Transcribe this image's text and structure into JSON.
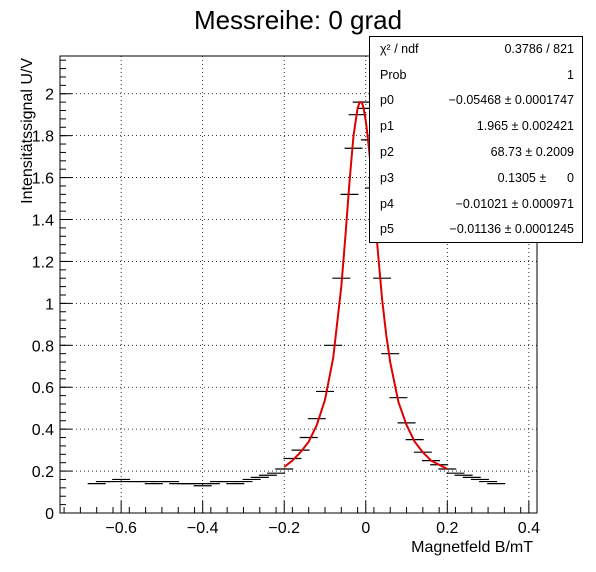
{
  "chart_data": {
    "type": "scatter",
    "title": "Messreihe: 0 grad",
    "xlabel": "Magnetfeld B/mT",
    "ylabel": "Intensitätssignal U/V",
    "xlim": [
      -0.75,
      0.42
    ],
    "ylim": [
      0,
      2.18
    ],
    "x_ticks": [
      -0.6,
      -0.4,
      -0.2,
      0,
      0.2,
      0.4
    ],
    "x_tick_labels": [
      "−0.6",
      "−0.4",
      "−0.2",
      "0",
      "0.2",
      "0.4"
    ],
    "y_ticks": [
      0,
      0.2,
      0.4,
      0.6,
      0.8,
      1,
      1.2,
      1.4,
      1.6,
      1.8,
      2
    ],
    "y_tick_labels": [
      "0",
      "0.2",
      "0.4",
      "0.6",
      "0.8",
      "1",
      "1.2",
      "1.4",
      "1.6",
      "1.8",
      "2"
    ],
    "grid": true,
    "fit_color": "#dd0000",
    "data_color": "#000000",
    "fit_range": [
      -0.2,
      0.2
    ],
    "fit_function": "p0 + p1*p2^2/(p2^2*(x-p4)^2+1)... (Lorentz-type peak)",
    "series": [
      {
        "kind": "data",
        "x": [
          -0.66,
          -0.64,
          -0.62,
          -0.6,
          -0.58,
          -0.56,
          -0.54,
          -0.52,
          -0.5,
          -0.48,
          -0.46,
          -0.44,
          -0.42,
          -0.4,
          -0.38,
          -0.36,
          -0.34,
          -0.32,
          -0.3,
          -0.28,
          -0.26,
          -0.24,
          -0.22,
          -0.2,
          -0.18,
          -0.16,
          -0.14,
          -0.12,
          -0.1,
          -0.08,
          -0.06,
          -0.04,
          -0.03,
          -0.02,
          -0.01,
          0.0,
          0.01,
          0.02,
          0.04,
          0.06,
          0.08,
          0.1,
          0.12,
          0.14,
          0.16,
          0.18,
          0.2,
          0.22,
          0.24,
          0.26,
          0.28,
          0.3,
          0.32
        ],
        "y": [
          0.14,
          0.15,
          0.15,
          0.16,
          0.15,
          0.15,
          0.15,
          0.14,
          0.15,
          0.15,
          0.14,
          0.14,
          0.14,
          0.13,
          0.14,
          0.15,
          0.15,
          0.14,
          0.15,
          0.16,
          0.17,
          0.18,
          0.19,
          0.21,
          0.26,
          0.3,
          0.36,
          0.45,
          0.58,
          0.8,
          1.12,
          1.52,
          1.74,
          1.9,
          1.96,
          1.93,
          1.78,
          1.55,
          1.12,
          0.76,
          0.55,
          0.43,
          0.35,
          0.29,
          0.25,
          0.23,
          0.21,
          0.19,
          0.18,
          0.17,
          0.16,
          0.15,
          0.14
        ]
      },
      {
        "kind": "fit",
        "x": [
          -0.2,
          -0.18,
          -0.16,
          -0.14,
          -0.12,
          -0.1,
          -0.08,
          -0.06,
          -0.05,
          -0.04,
          -0.03,
          -0.02,
          -0.015,
          -0.01,
          -0.005,
          0.0,
          0.005,
          0.01,
          0.02,
          0.03,
          0.04,
          0.05,
          0.06,
          0.08,
          0.1,
          0.12,
          0.14,
          0.16,
          0.18,
          0.2
        ],
        "y": [
          0.22,
          0.25,
          0.29,
          0.34,
          0.42,
          0.54,
          0.74,
          1.08,
          1.32,
          1.58,
          1.8,
          1.93,
          1.96,
          1.96,
          1.93,
          1.87,
          1.79,
          1.7,
          1.48,
          1.24,
          1.02,
          0.85,
          0.72,
          0.53,
          0.42,
          0.34,
          0.29,
          0.25,
          0.23,
          0.21
        ]
      }
    ],
    "stats_box": {
      "placement": "top-right",
      "rows": [
        {
          "key": "χ² / ndf",
          "value": "0.3786 / 821"
        },
        {
          "key": "Prob",
          "value": "1"
        },
        {
          "key": "p0",
          "value": "−0.05468 ± 0.0001747"
        },
        {
          "key": "p1",
          "value": "1.965 ± 0.002421"
        },
        {
          "key": "p2",
          "value": "68.73 ± 0.2009"
        },
        {
          "key": "p3",
          "value": "0.1305 ±      0"
        },
        {
          "key": "p4",
          "value": "−0.01021 ± 0.000971"
        },
        {
          "key": "p5",
          "value": "−0.01136 ± 0.0001245"
        }
      ]
    }
  }
}
